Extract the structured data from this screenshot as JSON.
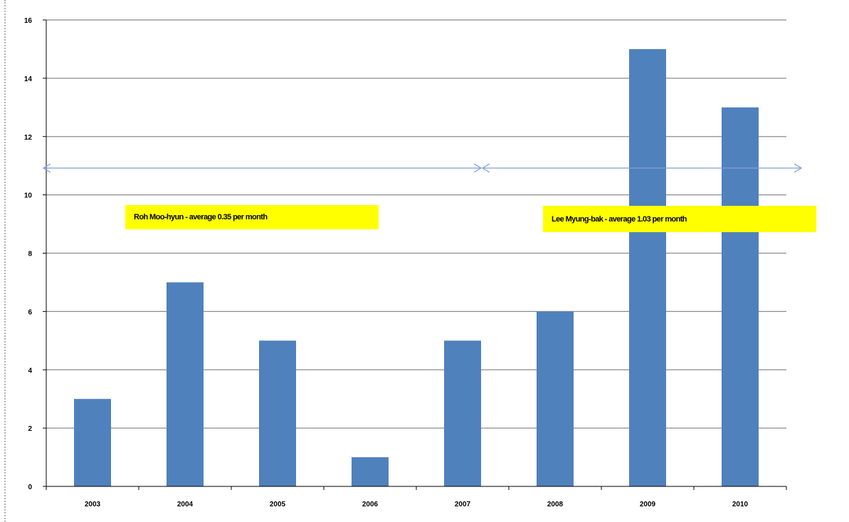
{
  "chart_data": {
    "type": "bar",
    "categories": [
      "2003",
      "2004",
      "2005",
      "2006",
      "2007",
      "2008",
      "2009",
      "2010"
    ],
    "values": [
      3,
      7,
      5,
      1,
      5,
      6,
      15,
      13
    ],
    "yticks": [
      "0",
      "2",
      "4",
      "6",
      "8",
      "10",
      "12",
      "14",
      "16"
    ],
    "ylim": [
      0,
      16
    ],
    "grid": true,
    "bar_color": "#4f81bd",
    "grid_color": "#8c8c8c",
    "arrow_color": "#7f9fd6",
    "annotations": [
      {
        "text": "Roh Moo-hyun - average 0.35 per month",
        "from": "2003",
        "to": "2007"
      },
      {
        "text": "Lee Myung-bak - average 1.03 per month",
        "from": "2008",
        "to": "2010"
      }
    ],
    "title": "",
    "xlabel": "",
    "ylabel": ""
  }
}
